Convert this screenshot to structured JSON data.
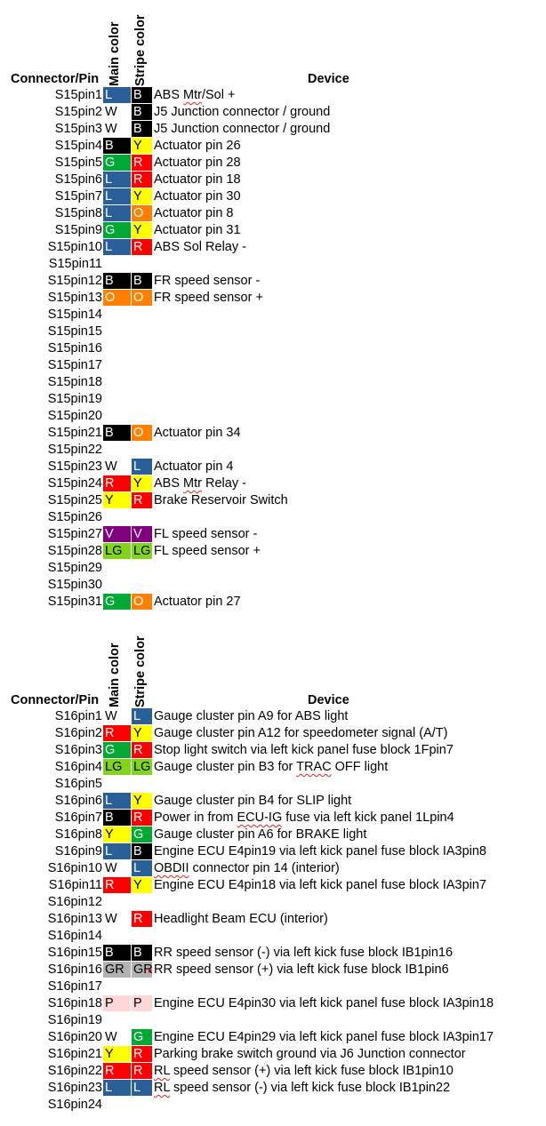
{
  "legend_colors": {
    "L": {
      "bg": "#2a6099",
      "fg": "#ffffff"
    },
    "B": {
      "bg": "#000000",
      "fg": "#ffffff"
    },
    "W": {
      "bg": "transparent",
      "fg": "#000000"
    },
    "Y": {
      "bg": "#ffff00",
      "fg": "#000000"
    },
    "G": {
      "bg": "#00a933",
      "fg": "#ffffff"
    },
    "R": {
      "bg": "#ff0000",
      "fg": "#ffffff"
    },
    "O": {
      "bg": "#ff8000",
      "fg": "#ffffff"
    },
    "V": {
      "bg": "#800080",
      "fg": "#ffffff"
    },
    "LG": {
      "bg": "#81d41a",
      "fg": "#000000"
    },
    "GR": {
      "bg": "#b2b2b2",
      "fg": "#000000"
    },
    "P": {
      "bg": "#ffd7d7",
      "fg": "#000000"
    }
  },
  "sections": [
    {
      "headers": {
        "pin": "Connector/Pin",
        "main": "Main color",
        "stripe": "Stripe color",
        "device": "Device"
      },
      "rows": [
        {
          "pin": "S15pin1",
          "main": "L",
          "stripe": "B",
          "device": "ABS Mtr/Sol +",
          "spell": "Mtr"
        },
        {
          "pin": "S15pin2",
          "main": "W",
          "stripe": "B",
          "device": "J5 Junction connector / ground"
        },
        {
          "pin": "S15pin3",
          "main": "W",
          "stripe": "B",
          "device": "J5 Junction connector / ground"
        },
        {
          "pin": "S15pin4",
          "main": "B",
          "stripe": "Y",
          "device": "Actuator pin 26"
        },
        {
          "pin": "S15pin5",
          "main": "G",
          "stripe": "R",
          "device": "Actuator pin 28"
        },
        {
          "pin": "S15pin6",
          "main": "L",
          "stripe": "R",
          "device": "Actuator pin 18"
        },
        {
          "pin": "S15pin7",
          "main": "L",
          "stripe": "Y",
          "device": "Actuator pin 30"
        },
        {
          "pin": "S15pin8",
          "main": "L",
          "stripe": "O",
          "device": "Actuator pin 8"
        },
        {
          "pin": "S15pin9",
          "main": "G",
          "stripe": "Y",
          "device": "Actuator pin 31"
        },
        {
          "pin": "S15pin10",
          "main": "L",
          "stripe": "R",
          "device": "ABS Sol Relay -"
        },
        {
          "pin": "S15pin11",
          "main": "",
          "stripe": "",
          "device": ""
        },
        {
          "pin": "S15pin12",
          "main": "B",
          "stripe": "B",
          "device": "FR speed sensor -"
        },
        {
          "pin": "S15pin13",
          "main": "O",
          "stripe": "O",
          "device": "FR speed sensor +"
        },
        {
          "pin": "S15pin14",
          "main": "",
          "stripe": "",
          "device": ""
        },
        {
          "pin": "S15pin15",
          "main": "",
          "stripe": "",
          "device": ""
        },
        {
          "pin": "S15pin16",
          "main": "",
          "stripe": "",
          "device": ""
        },
        {
          "pin": "S15pin17",
          "main": "",
          "stripe": "",
          "device": ""
        },
        {
          "pin": "S15pin18",
          "main": "",
          "stripe": "",
          "device": ""
        },
        {
          "pin": "S15pin19",
          "main": "",
          "stripe": "",
          "device": ""
        },
        {
          "pin": "S15pin20",
          "main": "",
          "stripe": "",
          "device": ""
        },
        {
          "pin": "S15pin21",
          "main": "B",
          "stripe": "O",
          "device": "Actuator pin 34"
        },
        {
          "pin": "S15pin22",
          "main": "",
          "stripe": "",
          "device": ""
        },
        {
          "pin": "S15pin23",
          "main": "W",
          "stripe": "L",
          "device": "Actuator pin 4"
        },
        {
          "pin": "S15pin24",
          "main": "R",
          "stripe": "Y",
          "device": "ABS Mtr Relay -",
          "spell": "Mtr"
        },
        {
          "pin": "S15pin25",
          "main": "Y",
          "stripe": "R",
          "device": "Brake Reservoir Switch"
        },
        {
          "pin": "S15pin26",
          "main": "",
          "stripe": "",
          "device": ""
        },
        {
          "pin": "S15pin27",
          "main": "V",
          "stripe": "V",
          "device": "FL speed sensor -"
        },
        {
          "pin": "S15pin28",
          "main": "LG",
          "stripe": "LG",
          "device": "FL speed sensor +"
        },
        {
          "pin": "S15pin29",
          "main": "",
          "stripe": "",
          "device": ""
        },
        {
          "pin": "S15pin30",
          "main": "",
          "stripe": "",
          "device": ""
        },
        {
          "pin": "S15pin31",
          "main": "G",
          "stripe": "O",
          "device": "Actuator pin 27"
        }
      ]
    },
    {
      "headers": {
        "pin": "Connector/Pin",
        "main": "Main color",
        "stripe": "Stripe color",
        "device": "Device"
      },
      "rows": [
        {
          "pin": "S16pin1",
          "main": "W",
          "stripe": "L",
          "device": "Gauge cluster pin A9 for ABS light"
        },
        {
          "pin": "S16pin2",
          "main": "R",
          "stripe": "Y",
          "device": "Gauge cluster pin A12 for speedometer signal (A/T)"
        },
        {
          "pin": "S16pin3",
          "main": "G",
          "stripe": "R",
          "device": "Stop light switch via left kick panel fuse block 1Fpin7"
        },
        {
          "pin": "S16pin4",
          "main": "LG",
          "stripe": "LG",
          "device": "Gauge cluster pin B3 for TRAC OFF light",
          "spell": "TRAC"
        },
        {
          "pin": "S16pin5",
          "main": "",
          "stripe": "",
          "device": ""
        },
        {
          "pin": "S16pin6",
          "main": "L",
          "stripe": "Y",
          "device": "Gauge cluster pin B4 for SLIP light"
        },
        {
          "pin": "S16pin7",
          "main": "B",
          "stripe": "R",
          "device": "Power in from ECU-IG fuse via left kick panel 1Lpin4",
          "spell": "ECU-IG"
        },
        {
          "pin": "S16pin8",
          "main": "Y",
          "stripe": "G",
          "device": "Gauge cluster pin A6 for BRAKE light"
        },
        {
          "pin": "S16pin9",
          "main": "L",
          "stripe": "B",
          "device": "Engine ECU E4pin19 via left kick panel fuse block IA3pin8"
        },
        {
          "pin": "S16pin10",
          "main": "W",
          "stripe": "L",
          "device": "OBDII connector pin 14 (interior)",
          "spell": "OBDII"
        },
        {
          "pin": "S16pin11",
          "main": "R",
          "stripe": "Y",
          "device": "Engine ECU E4pin18 via left kick panel fuse block IA3pin7"
        },
        {
          "pin": "S16pin12",
          "main": "",
          "stripe": "",
          "device": ""
        },
        {
          "pin": "S16pin13",
          "main": "W",
          "stripe": "R",
          "device": "Headlight Beam ECU (interior)"
        },
        {
          "pin": "S16pin14",
          "main": "",
          "stripe": "",
          "device": ""
        },
        {
          "pin": "S16pin15",
          "main": "B",
          "stripe": "B",
          "device": "RR speed sensor (-) via left kick fuse block IB1pin16"
        },
        {
          "pin": "S16pin16",
          "main": "GR",
          "stripe": "GR",
          "device": "RR speed sensor (+) via left kick fuse block IB1pin6",
          "stripe_overflow": true
        },
        {
          "pin": "S16pin17",
          "main": "",
          "stripe": "",
          "device": ""
        },
        {
          "pin": "S16pin18",
          "main": "P",
          "stripe": "P",
          "device": "Engine ECU E4pin30 via left kick panel fuse block IA3pin18"
        },
        {
          "pin": "S16pin19",
          "main": "",
          "stripe": "",
          "device": ""
        },
        {
          "pin": "S16pin20",
          "main": "W",
          "stripe": "G",
          "device": "Engine ECU E4pin29 via left kick panel fuse block IA3pin17"
        },
        {
          "pin": "S16pin21",
          "main": "Y",
          "stripe": "R",
          "device": "Parking brake switch ground via J6 Junction connector"
        },
        {
          "pin": "S16pin22",
          "main": "R",
          "stripe": "R",
          "device": "RL speed sensor (+) via left kick fuse block IB1pin10",
          "spell": "RL"
        },
        {
          "pin": "S16pin23",
          "main": "L",
          "stripe": "L",
          "device": "RL speed sensor (-) via left kick fuse block IB1pin22",
          "spell": "RL"
        },
        {
          "pin": "S16pin24",
          "main": "",
          "stripe": "",
          "device": ""
        }
      ]
    }
  ]
}
